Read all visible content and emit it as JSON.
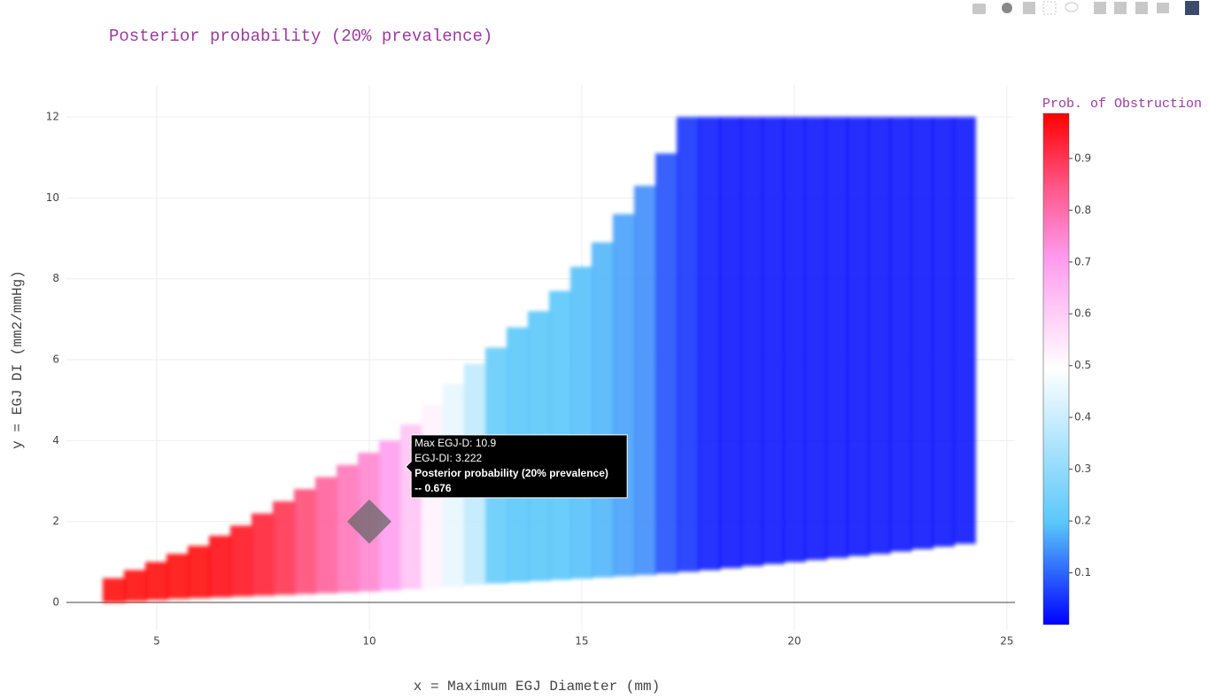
{
  "chart_data": {
    "type": "scatter",
    "title": "Posterior probability (20% prevalence)",
    "x_label": "x = Maximum EGJ Diameter (mm)",
    "y_label": "y = EGJ DI (mm2/mmHg)",
    "colorbar_title": "Prob. of Obstruction",
    "x": [
      4,
      4.5,
      5,
      5.5,
      6,
      6.5,
      7,
      7.5,
      8,
      8.5,
      9,
      9.5,
      10,
      10.5,
      11,
      11.5,
      12,
      12.5,
      13,
      13.5,
      14,
      14.5,
      15,
      15.5,
      16,
      16.5,
      17,
      17.5,
      18,
      18.5,
      19,
      19.5,
      20,
      20.5,
      21,
      21.5,
      22,
      22.5,
      23,
      23.5,
      24
    ],
    "y_low": [
      0,
      0.03,
      0.06,
      0.09,
      0.11,
      0.13,
      0.15,
      0.17,
      0.19,
      0.21,
      0.23,
      0.25,
      0.27,
      0.3,
      0.33,
      0.36,
      0.4,
      0.44,
      0.47,
      0.5,
      0.53,
      0.56,
      0.59,
      0.62,
      0.65,
      0.68,
      0.72,
      0.76,
      0.8,
      0.85,
      0.9,
      0.95,
      1.0,
      1.05,
      1.1,
      1.15,
      1.2,
      1.26,
      1.32,
      1.38,
      1.45
    ],
    "y_high": [
      0.6,
      0.8,
      1.0,
      1.2,
      1.4,
      1.65,
      1.9,
      2.2,
      2.5,
      2.8,
      3.1,
      3.4,
      3.7,
      4.0,
      4.4,
      4.9,
      5.4,
      5.9,
      6.3,
      6.8,
      7.2,
      7.7,
      8.3,
      8.9,
      9.6,
      10.3,
      11.1,
      12,
      12,
      12,
      12,
      12,
      12,
      12,
      12,
      12,
      12,
      12,
      12,
      12,
      12
    ],
    "values": [
      0.97,
      0.97,
      0.97,
      0.97,
      0.97,
      0.96,
      0.95,
      0.93,
      0.9,
      0.86,
      0.82,
      0.78,
      0.75,
      0.7,
      0.62,
      0.52,
      0.45,
      0.38,
      0.22,
      0.2,
      0.2,
      0.2,
      0.19,
      0.18,
      0.16,
      0.14,
      0.08,
      0.05,
      0.03,
      0.02,
      0.02,
      0.02,
      0.02,
      0.02,
      0.02,
      0.02,
      0.02,
      0.02,
      0.02,
      0.02,
      0.02
    ],
    "colorscale": [
      [
        0,
        "#0000ff"
      ],
      [
        0.2,
        "#5ac8fa"
      ],
      [
        0.5,
        "#ffffff"
      ],
      [
        0.72,
        "#ff99ee"
      ],
      [
        0.85,
        "#ff5a8c"
      ],
      [
        1,
        "#ff0000"
      ]
    ],
    "clim": [
      0,
      0.987
    ],
    "cticks": [
      0.1,
      0.2,
      0.3,
      0.4,
      0.5,
      0.6,
      0.7,
      0.8,
      0.9
    ],
    "xlim": [
      2.875,
      25.19
    ],
    "xticks": [
      5,
      10,
      15,
      20,
      25
    ],
    "ylim": [
      -0.7,
      12.79
    ],
    "yticks": [
      0,
      2,
      4,
      6,
      8,
      10,
      12
    ],
    "grid": true,
    "highlight": {
      "x": 10,
      "y": 2
    },
    "hover": {
      "x": 10.9,
      "y": 3.222,
      "lines": [
        "Max EGJ-D: 10.9",
        "EGJ-DI: 3.222",
        "Posterior probability (20% prevalence)",
        "-- 0.676"
      ]
    }
  }
}
